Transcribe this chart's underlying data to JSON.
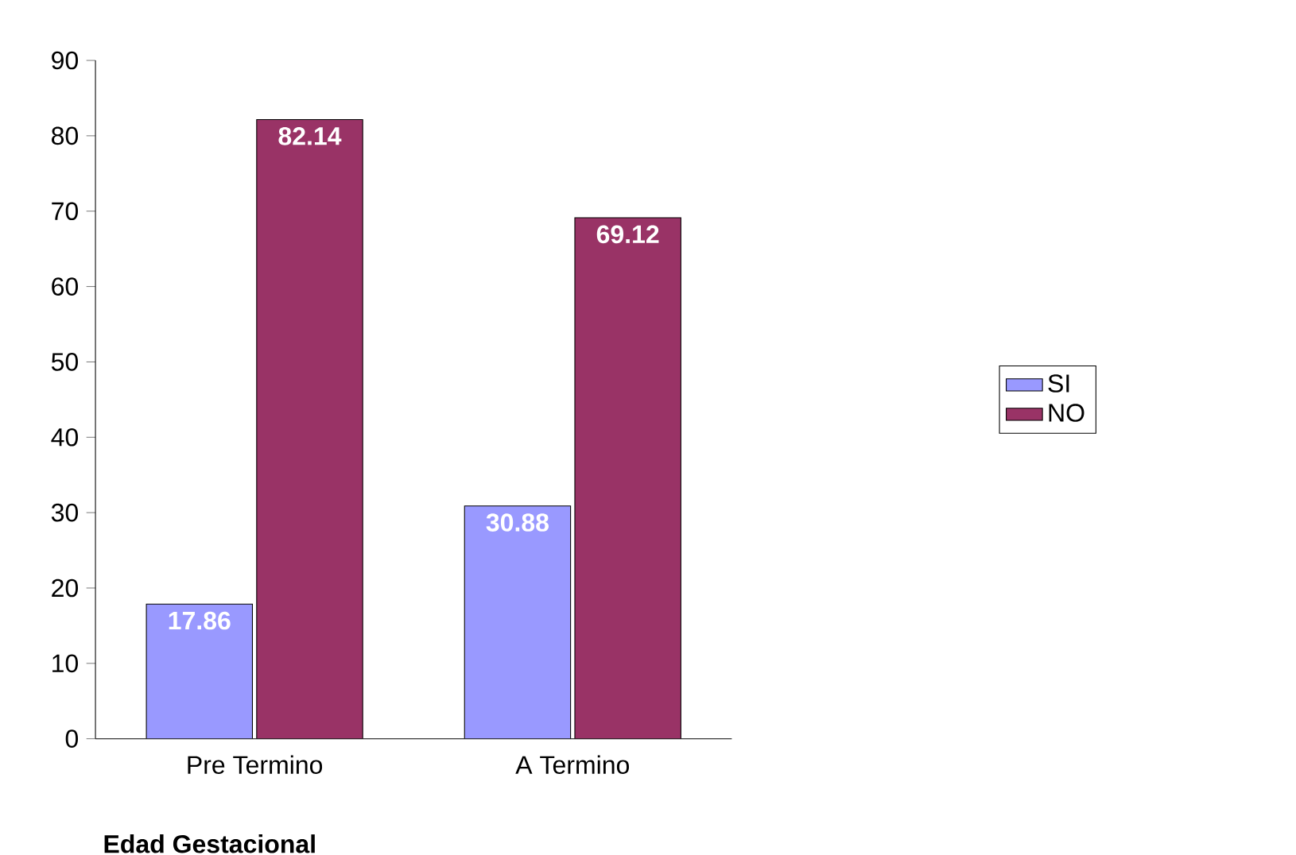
{
  "chart_data": {
    "type": "bar",
    "xlabel": "Edad Gestacional",
    "categories": [
      "Pre Termino",
      "A Termino"
    ],
    "series": [
      {
        "name": "SI",
        "color": "#9999ff",
        "values": [
          17.86,
          30.88
        ]
      },
      {
        "name": "NO",
        "color": "#993366",
        "values": [
          82.14,
          69.12
        ]
      }
    ],
    "ylim": [
      0,
      90
    ],
    "yticks": [
      0,
      10,
      20,
      30,
      40,
      50,
      60,
      70,
      80,
      90
    ],
    "data_labels": true,
    "legend": "right",
    "grid": false
  }
}
